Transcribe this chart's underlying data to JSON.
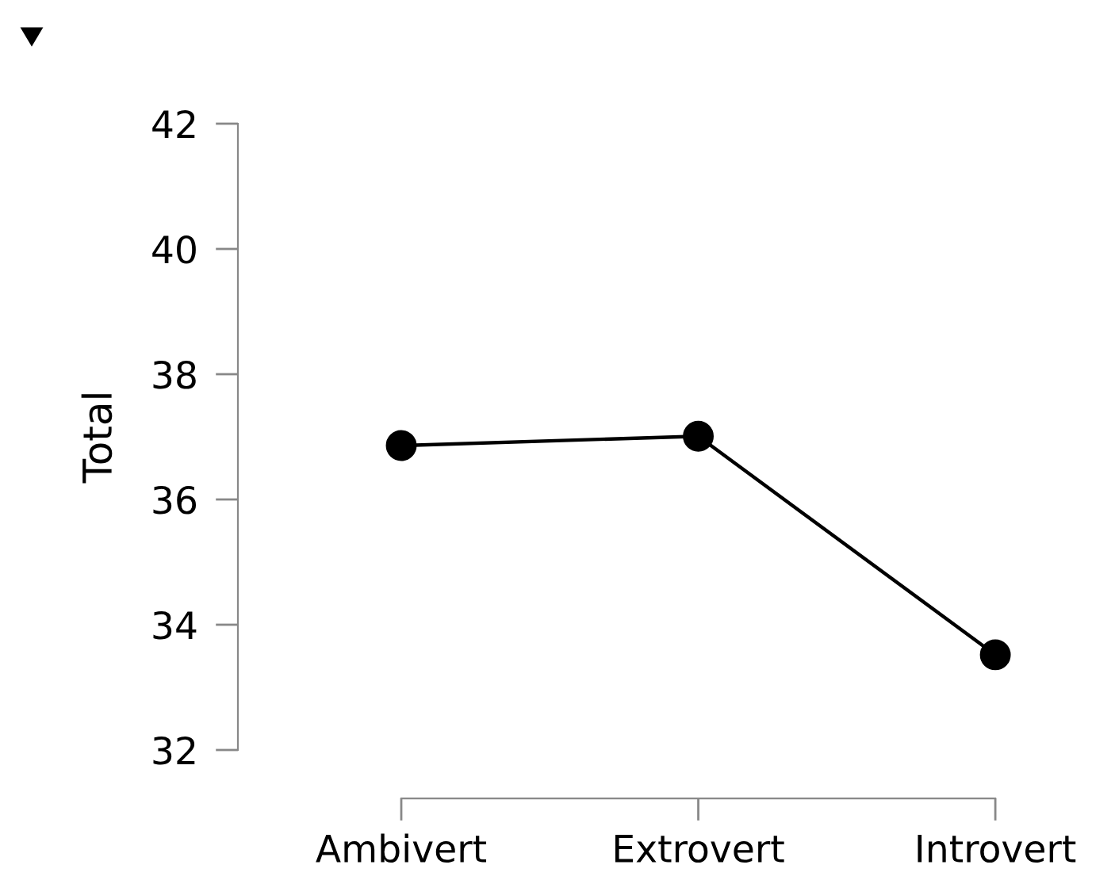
{
  "chart_data": {
    "type": "line",
    "ylabel": "Total",
    "categories": [
      "Ambivert",
      "Extrovert",
      "Introvert"
    ],
    "values": [
      36.86,
      37.01,
      33.52
    ],
    "color": "#000000",
    "marker": "circle",
    "line_style": "solid",
    "ylim": [
      32,
      42
    ],
    "yticks": [
      32,
      34,
      36,
      38,
      40,
      42
    ],
    "grid": false
  }
}
